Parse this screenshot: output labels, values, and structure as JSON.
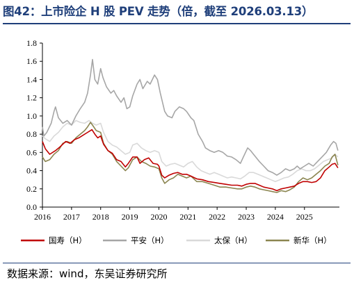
{
  "title": "图42：上市险企 H 股 PEV 走势（倍，截至 2026.03.13）",
  "source": "数据来源：wind，东吴证券研究所",
  "chart_data": {
    "type": "line",
    "title": "上市险企 H 股 PEV 走势（倍，截至 2026.03.13）",
    "xlabel": "",
    "ylabel": "",
    "xlim": [
      2016.0,
      2026.2
    ],
    "ylim": [
      0.0,
      1.8
    ],
    "x_ticks": [
      "2016",
      "2017",
      "2018",
      "2019",
      "2020",
      "2021",
      "2022",
      "2023",
      "2024",
      "2025"
    ],
    "y_ticks": [
      "0.0",
      "0.2",
      "0.4",
      "0.6",
      "0.8",
      "1.0",
      "1.2",
      "1.4",
      "1.6",
      "1.8"
    ],
    "grid": false,
    "legend_position": "bottom",
    "series": [
      {
        "name": "国寿（H）",
        "color": "#c00000",
        "points": [
          [
            2016.0,
            0.72
          ],
          [
            2016.1,
            0.64
          ],
          [
            2016.25,
            0.58
          ],
          [
            2016.45,
            0.62
          ],
          [
            2016.6,
            0.66
          ],
          [
            2016.8,
            0.72
          ],
          [
            2016.95,
            0.7
          ],
          [
            2017.1,
            0.74
          ],
          [
            2017.25,
            0.76
          ],
          [
            2017.4,
            0.79
          ],
          [
            2017.55,
            0.82
          ],
          [
            2017.7,
            0.85
          ],
          [
            2017.8,
            0.8
          ],
          [
            2017.9,
            0.76
          ],
          [
            2018.0,
            0.78
          ],
          [
            2018.1,
            0.69
          ],
          [
            2018.25,
            0.62
          ],
          [
            2018.4,
            0.59
          ],
          [
            2018.55,
            0.52
          ],
          [
            2018.7,
            0.5
          ],
          [
            2018.85,
            0.44
          ],
          [
            2018.95,
            0.48
          ],
          [
            2019.1,
            0.55
          ],
          [
            2019.25,
            0.55
          ],
          [
            2019.35,
            0.48
          ],
          [
            2019.5,
            0.52
          ],
          [
            2019.65,
            0.54
          ],
          [
            2019.8,
            0.48
          ],
          [
            2019.95,
            0.47
          ],
          [
            2020.0,
            0.45
          ],
          [
            2020.1,
            0.35
          ],
          [
            2020.2,
            0.32
          ],
          [
            2020.35,
            0.35
          ],
          [
            2020.5,
            0.37
          ],
          [
            2020.65,
            0.38
          ],
          [
            2020.8,
            0.36
          ],
          [
            2020.95,
            0.36
          ],
          [
            2021.1,
            0.34
          ],
          [
            2021.3,
            0.31
          ],
          [
            2021.5,
            0.3
          ],
          [
            2021.7,
            0.28
          ],
          [
            2021.9,
            0.27
          ],
          [
            2022.1,
            0.26
          ],
          [
            2022.3,
            0.25
          ],
          [
            2022.5,
            0.24
          ],
          [
            2022.7,
            0.24
          ],
          [
            2022.85,
            0.23
          ],
          [
            2023.0,
            0.25
          ],
          [
            2023.15,
            0.26
          ],
          [
            2023.3,
            0.26
          ],
          [
            2023.45,
            0.24
          ],
          [
            2023.6,
            0.22
          ],
          [
            2023.75,
            0.21
          ],
          [
            2023.9,
            0.2
          ],
          [
            2024.05,
            0.18
          ],
          [
            2024.2,
            0.2
          ],
          [
            2024.35,
            0.21
          ],
          [
            2024.5,
            0.22
          ],
          [
            2024.65,
            0.23
          ],
          [
            2024.8,
            0.26
          ],
          [
            2024.95,
            0.28
          ],
          [
            2025.1,
            0.28
          ],
          [
            2025.25,
            0.27
          ],
          [
            2025.4,
            0.28
          ],
          [
            2025.55,
            0.32
          ],
          [
            2025.7,
            0.4
          ],
          [
            2025.85,
            0.44
          ],
          [
            2025.95,
            0.47
          ],
          [
            2026.05,
            0.48
          ],
          [
            2026.15,
            0.43
          ]
        ]
      },
      {
        "name": "平安（H）",
        "color": "#a6a6a6",
        "points": [
          [
            2016.0,
            0.88
          ],
          [
            2016.05,
            0.78
          ],
          [
            2016.15,
            0.82
          ],
          [
            2016.3,
            0.92
          ],
          [
            2016.4,
            1.05
          ],
          [
            2016.45,
            1.1
          ],
          [
            2016.55,
            0.98
          ],
          [
            2016.7,
            0.92
          ],
          [
            2016.85,
            0.95
          ],
          [
            2017.0,
            0.9
          ],
          [
            2017.15,
            1.0
          ],
          [
            2017.3,
            1.08
          ],
          [
            2017.45,
            1.15
          ],
          [
            2017.55,
            1.25
          ],
          [
            2017.65,
            1.45
          ],
          [
            2017.72,
            1.62
          ],
          [
            2017.8,
            1.4
          ],
          [
            2017.9,
            1.35
          ],
          [
            2018.0,
            1.52
          ],
          [
            2018.08,
            1.42
          ],
          [
            2018.2,
            1.32
          ],
          [
            2018.35,
            1.25
          ],
          [
            2018.45,
            1.28
          ],
          [
            2018.55,
            1.22
          ],
          [
            2018.7,
            1.15
          ],
          [
            2018.8,
            1.2
          ],
          [
            2018.9,
            1.08
          ],
          [
            2019.0,
            1.1
          ],
          [
            2019.1,
            1.22
          ],
          [
            2019.25,
            1.35
          ],
          [
            2019.35,
            1.4
          ],
          [
            2019.45,
            1.3
          ],
          [
            2019.6,
            1.38
          ],
          [
            2019.7,
            1.35
          ],
          [
            2019.85,
            1.45
          ],
          [
            2019.95,
            1.4
          ],
          [
            2020.05,
            1.25
          ],
          [
            2020.2,
            1.05
          ],
          [
            2020.3,
            1.0
          ],
          [
            2020.45,
            0.98
          ],
          [
            2020.55,
            1.05
          ],
          [
            2020.7,
            1.1
          ],
          [
            2020.85,
            1.08
          ],
          [
            2020.95,
            1.05
          ],
          [
            2021.1,
            0.98
          ],
          [
            2021.2,
            0.95
          ],
          [
            2021.35,
            0.8
          ],
          [
            2021.5,
            0.72
          ],
          [
            2021.6,
            0.65
          ],
          [
            2021.75,
            0.62
          ],
          [
            2021.9,
            0.6
          ],
          [
            2022.05,
            0.62
          ],
          [
            2022.2,
            0.6
          ],
          [
            2022.35,
            0.56
          ],
          [
            2022.5,
            0.55
          ],
          [
            2022.65,
            0.52
          ],
          [
            2022.8,
            0.48
          ],
          [
            2022.9,
            0.55
          ],
          [
            2023.05,
            0.65
          ],
          [
            2023.15,
            0.62
          ],
          [
            2023.3,
            0.56
          ],
          [
            2023.45,
            0.5
          ],
          [
            2023.6,
            0.45
          ],
          [
            2023.75,
            0.4
          ],
          [
            2023.9,
            0.38
          ],
          [
            2024.05,
            0.35
          ],
          [
            2024.2,
            0.38
          ],
          [
            2024.35,
            0.42
          ],
          [
            2024.5,
            0.4
          ],
          [
            2024.65,
            0.42
          ],
          [
            2024.75,
            0.45
          ],
          [
            2024.85,
            0.42
          ],
          [
            2025.0,
            0.45
          ],
          [
            2025.15,
            0.48
          ],
          [
            2025.3,
            0.45
          ],
          [
            2025.45,
            0.5
          ],
          [
            2025.6,
            0.55
          ],
          [
            2025.75,
            0.6
          ],
          [
            2025.9,
            0.68
          ],
          [
            2026.0,
            0.72
          ],
          [
            2026.08,
            0.7
          ],
          [
            2026.15,
            0.62
          ]
        ]
      },
      {
        "name": "太保（H）",
        "color": "#d9d9d9",
        "points": [
          [
            2016.0,
            0.78
          ],
          [
            2016.1,
            0.75
          ],
          [
            2016.25,
            0.72
          ],
          [
            2016.4,
            0.78
          ],
          [
            2016.55,
            0.82
          ],
          [
            2016.7,
            0.88
          ],
          [
            2016.85,
            0.92
          ],
          [
            2017.0,
            0.9
          ],
          [
            2017.15,
            0.95
          ],
          [
            2017.3,
            0.93
          ],
          [
            2017.45,
            0.92
          ],
          [
            2017.6,
            0.95
          ],
          [
            2017.72,
            0.92
          ],
          [
            2017.85,
            0.9
          ],
          [
            2018.0,
            0.92
          ],
          [
            2018.1,
            0.82
          ],
          [
            2018.25,
            0.72
          ],
          [
            2018.4,
            0.68
          ],
          [
            2018.55,
            0.66
          ],
          [
            2018.7,
            0.62
          ],
          [
            2018.85,
            0.58
          ],
          [
            2019.0,
            0.6
          ],
          [
            2019.1,
            0.68
          ],
          [
            2019.25,
            0.7
          ],
          [
            2019.4,
            0.65
          ],
          [
            2019.55,
            0.62
          ],
          [
            2019.7,
            0.6
          ],
          [
            2019.85,
            0.62
          ],
          [
            2020.0,
            0.6
          ],
          [
            2020.1,
            0.5
          ],
          [
            2020.25,
            0.45
          ],
          [
            2020.4,
            0.47
          ],
          [
            2020.55,
            0.48
          ],
          [
            2020.7,
            0.46
          ],
          [
            2020.85,
            0.44
          ],
          [
            2021.0,
            0.48
          ],
          [
            2021.15,
            0.5
          ],
          [
            2021.3,
            0.44
          ],
          [
            2021.45,
            0.4
          ],
          [
            2021.6,
            0.38
          ],
          [
            2021.75,
            0.36
          ],
          [
            2021.9,
            0.38
          ],
          [
            2022.05,
            0.36
          ],
          [
            2022.2,
            0.34
          ],
          [
            2022.35,
            0.32
          ],
          [
            2022.5,
            0.33
          ],
          [
            2022.65,
            0.32
          ],
          [
            2022.8,
            0.31
          ],
          [
            2022.95,
            0.34
          ],
          [
            2023.1,
            0.38
          ],
          [
            2023.25,
            0.38
          ],
          [
            2023.4,
            0.36
          ],
          [
            2023.55,
            0.34
          ],
          [
            2023.7,
            0.32
          ],
          [
            2023.85,
            0.3
          ],
          [
            2024.0,
            0.28
          ],
          [
            2024.15,
            0.3
          ],
          [
            2024.3,
            0.32
          ],
          [
            2024.45,
            0.33
          ],
          [
            2024.6,
            0.36
          ],
          [
            2024.75,
            0.4
          ],
          [
            2024.9,
            0.42
          ],
          [
            2025.05,
            0.4
          ],
          [
            2025.2,
            0.4
          ],
          [
            2025.35,
            0.42
          ],
          [
            2025.5,
            0.46
          ],
          [
            2025.65,
            0.5
          ],
          [
            2025.8,
            0.52
          ],
          [
            2025.95,
            0.54
          ],
          [
            2026.05,
            0.58
          ],
          [
            2026.15,
            0.55
          ]
        ]
      },
      {
        "name": "新华（H）",
        "color": "#8b8550",
        "points": [
          [
            2016.0,
            0.55
          ],
          [
            2016.1,
            0.5
          ],
          [
            2016.25,
            0.52
          ],
          [
            2016.4,
            0.58
          ],
          [
            2016.55,
            0.62
          ],
          [
            2016.7,
            0.7
          ],
          [
            2016.85,
            0.72
          ],
          [
            2017.0,
            0.7
          ],
          [
            2017.15,
            0.76
          ],
          [
            2017.3,
            0.8
          ],
          [
            2017.45,
            0.84
          ],
          [
            2017.55,
            0.88
          ],
          [
            2017.65,
            0.93
          ],
          [
            2017.72,
            0.9
          ],
          [
            2017.85,
            0.84
          ],
          [
            2018.0,
            0.82
          ],
          [
            2018.1,
            0.7
          ],
          [
            2018.25,
            0.62
          ],
          [
            2018.4,
            0.58
          ],
          [
            2018.55,
            0.5
          ],
          [
            2018.7,
            0.45
          ],
          [
            2018.85,
            0.4
          ],
          [
            2018.95,
            0.43
          ],
          [
            2019.1,
            0.52
          ],
          [
            2019.25,
            0.55
          ],
          [
            2019.4,
            0.5
          ],
          [
            2019.55,
            0.48
          ],
          [
            2019.7,
            0.45
          ],
          [
            2019.85,
            0.44
          ],
          [
            2020.0,
            0.42
          ],
          [
            2020.1,
            0.32
          ],
          [
            2020.2,
            0.26
          ],
          [
            2020.35,
            0.3
          ],
          [
            2020.5,
            0.32
          ],
          [
            2020.65,
            0.36
          ],
          [
            2020.8,
            0.34
          ],
          [
            2020.95,
            0.32
          ],
          [
            2021.1,
            0.34
          ],
          [
            2021.3,
            0.28
          ],
          [
            2021.5,
            0.28
          ],
          [
            2021.7,
            0.26
          ],
          [
            2021.9,
            0.24
          ],
          [
            2022.1,
            0.22
          ],
          [
            2022.3,
            0.22
          ],
          [
            2022.5,
            0.21
          ],
          [
            2022.7,
            0.2
          ],
          [
            2022.85,
            0.2
          ],
          [
            2023.0,
            0.22
          ],
          [
            2023.15,
            0.23
          ],
          [
            2023.3,
            0.22
          ],
          [
            2023.45,
            0.2
          ],
          [
            2023.6,
            0.19
          ],
          [
            2023.75,
            0.18
          ],
          [
            2023.9,
            0.17
          ],
          [
            2024.05,
            0.16
          ],
          [
            2024.2,
            0.18
          ],
          [
            2024.35,
            0.17
          ],
          [
            2024.5,
            0.19
          ],
          [
            2024.65,
            0.22
          ],
          [
            2024.8,
            0.28
          ],
          [
            2024.95,
            0.32
          ],
          [
            2025.1,
            0.3
          ],
          [
            2025.25,
            0.32
          ],
          [
            2025.4,
            0.36
          ],
          [
            2025.55,
            0.4
          ],
          [
            2025.7,
            0.45
          ],
          [
            2025.85,
            0.48
          ],
          [
            2025.95,
            0.55
          ],
          [
            2026.05,
            0.58
          ],
          [
            2026.15,
            0.46
          ]
        ]
      }
    ]
  }
}
